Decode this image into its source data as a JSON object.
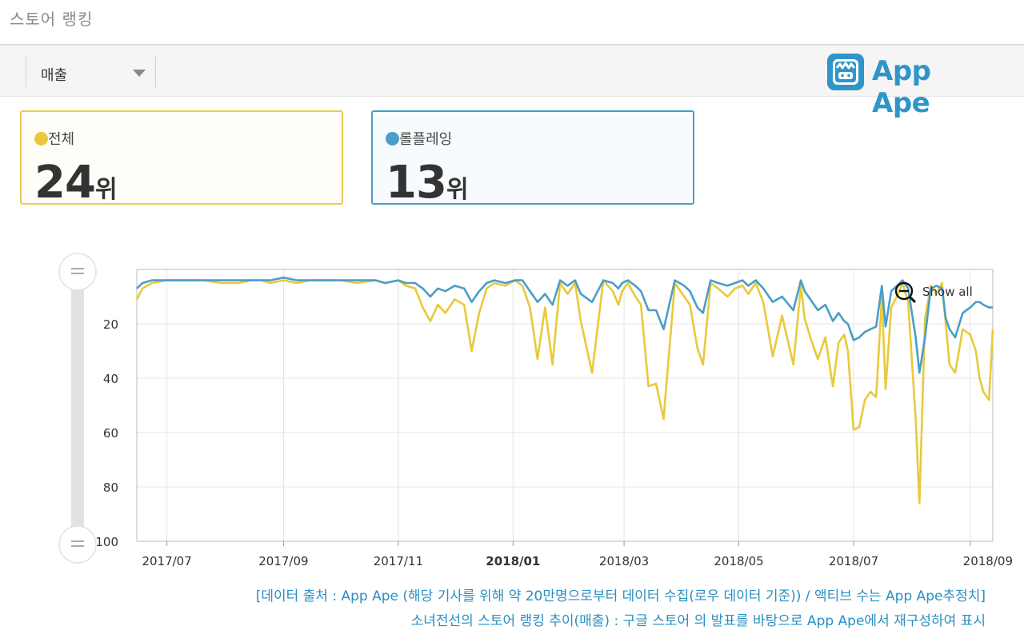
{
  "header": {
    "title": "스토어 랭킹"
  },
  "toolbar": {
    "dropdown_label": "매출"
  },
  "logo": {
    "text": "App Ape",
    "color": "#2f95c8"
  },
  "cards": [
    {
      "label": "전체",
      "rank": "24",
      "unit": "위",
      "color": "#e9c93b"
    },
    {
      "label": "롤플레잉",
      "rank": "13",
      "unit": "위",
      "color": "#4a9ec7"
    }
  ],
  "chart_controls": {
    "show_all_label": "Show all"
  },
  "captions": {
    "line1": "[데이터 출처 : App Ape (해당 기사를 위해 약 20만명으로부터 데이터 수집(로우 데이터 기준)) / 액티브 수는 App Ape추정치]",
    "line2": "소녀전선의 스토어 랭킹 추이(매출) : 구글 스토어 의 발표를 바탕으로 App Ape에서 재구성하여 표시"
  },
  "chart_data": {
    "type": "line",
    "y_inverted": true,
    "ylim": [
      0,
      100
    ],
    "y_ticks": [
      "20",
      "40",
      "60",
      "80",
      "100"
    ],
    "x_ticks": [
      "2017/07",
      "2017/09",
      "2017/11",
      "2018/01",
      "2018/03",
      "2018/05",
      "2018/07",
      "2018/09"
    ],
    "x_tick_bold": "2018/01",
    "xlim": [
      "2017-06-15",
      "2018-09-13"
    ],
    "grid": true,
    "series": [
      {
        "name": "전체",
        "color": "#e9c93b",
        "x": [
          "2017-06-15",
          "2017-06-18",
          "2017-06-23",
          "2017-07-01",
          "2017-07-10",
          "2017-07-20",
          "2017-07-30",
          "2017-08-08",
          "2017-08-15",
          "2017-08-20",
          "2017-08-25",
          "2017-09-01",
          "2017-09-08",
          "2017-09-15",
          "2017-09-22",
          "2017-10-01",
          "2017-10-10",
          "2017-10-20",
          "2017-10-25",
          "2017-11-01",
          "2017-11-05",
          "2017-11-10",
          "2017-11-14",
          "2017-11-18",
          "2017-11-22",
          "2017-11-26",
          "2017-12-01",
          "2017-12-06",
          "2017-12-10",
          "2017-12-14",
          "2017-12-18",
          "2017-12-22",
          "2017-12-28",
          "2018-01-02",
          "2018-01-06",
          "2018-01-10",
          "2018-01-14",
          "2018-01-18",
          "2018-01-22",
          "2018-01-26",
          "2018-01-30",
          "2018-02-03",
          "2018-02-06",
          "2018-02-12",
          "2018-02-18",
          "2018-02-23",
          "2018-02-26",
          "2018-02-28",
          "2018-03-03",
          "2018-03-07",
          "2018-03-10",
          "2018-03-14",
          "2018-03-18",
          "2018-03-22",
          "2018-03-28",
          "2018-04-02",
          "2018-04-05",
          "2018-04-09",
          "2018-04-12",
          "2018-04-16",
          "2018-04-20",
          "2018-04-25",
          "2018-04-29",
          "2018-05-03",
          "2018-05-06",
          "2018-05-10",
          "2018-05-14",
          "2018-05-19",
          "2018-05-24",
          "2018-05-30",
          "2018-06-03",
          "2018-06-05",
          "2018-06-08",
          "2018-06-12",
          "2018-06-16",
          "2018-06-20",
          "2018-06-23",
          "2018-06-26",
          "2018-06-28",
          "2018-07-01",
          "2018-07-04",
          "2018-07-07",
          "2018-07-10",
          "2018-07-13",
          "2018-07-16",
          "2018-07-18",
          "2018-07-21",
          "2018-07-24",
          "2018-07-27",
          "2018-07-30",
          "2018-08-03",
          "2018-08-05",
          "2018-08-08",
          "2018-08-11",
          "2018-08-14",
          "2018-08-17",
          "2018-08-19",
          "2018-08-21",
          "2018-08-24",
          "2018-08-28",
          "2018-09-01",
          "2018-09-04",
          "2018-09-06",
          "2018-09-08",
          "2018-09-11",
          "2018-09-13"
        ],
        "y": [
          11,
          7,
          5,
          4,
          4,
          4,
          5,
          5,
          4,
          4,
          5,
          4,
          5,
          4,
          4,
          4,
          5,
          4,
          5,
          4,
          6,
          7,
          14,
          19,
          13,
          16,
          11,
          13,
          30,
          16,
          7,
          5,
          6,
          4,
          6,
          14,
          33,
          14,
          35,
          5,
          9,
          5,
          19,
          38,
          4,
          8,
          13,
          8,
          5,
          10,
          13,
          43,
          42,
          55,
          5,
          10,
          13,
          29,
          35,
          5,
          7,
          10,
          7,
          6,
          9,
          5,
          12,
          32,
          17,
          35,
          6,
          18,
          25,
          33,
          25,
          43,
          27,
          24,
          30,
          59,
          58,
          48,
          45,
          47,
          10,
          44,
          14,
          10,
          5,
          12,
          55,
          86,
          18,
          6,
          9,
          5,
          20,
          35,
          38,
          22,
          24,
          30,
          40,
          45,
          48,
          22
        ]
      },
      {
        "name": "롤플레잉",
        "color": "#4a9ec7",
        "x": [
          "2017-06-15",
          "2017-06-18",
          "2017-06-23",
          "2017-07-01",
          "2017-07-10",
          "2017-07-20",
          "2017-07-30",
          "2017-08-08",
          "2017-08-15",
          "2017-08-20",
          "2017-08-25",
          "2017-09-01",
          "2017-09-08",
          "2017-09-15",
          "2017-09-22",
          "2017-10-01",
          "2017-10-10",
          "2017-10-20",
          "2017-10-25",
          "2017-11-01",
          "2017-11-05",
          "2017-11-10",
          "2017-11-14",
          "2017-11-18",
          "2017-11-22",
          "2017-11-26",
          "2017-12-01",
          "2017-12-06",
          "2017-12-10",
          "2017-12-14",
          "2017-12-18",
          "2017-12-22",
          "2017-12-28",
          "2018-01-02",
          "2018-01-06",
          "2018-01-10",
          "2018-01-14",
          "2018-01-18",
          "2018-01-22",
          "2018-01-26",
          "2018-01-30",
          "2018-02-03",
          "2018-02-06",
          "2018-02-12",
          "2018-02-18",
          "2018-02-23",
          "2018-02-26",
          "2018-02-28",
          "2018-03-03",
          "2018-03-07",
          "2018-03-10",
          "2018-03-14",
          "2018-03-18",
          "2018-03-22",
          "2018-03-28",
          "2018-04-02",
          "2018-04-05",
          "2018-04-09",
          "2018-04-12",
          "2018-04-16",
          "2018-04-20",
          "2018-04-25",
          "2018-04-29",
          "2018-05-03",
          "2018-05-06",
          "2018-05-10",
          "2018-05-14",
          "2018-05-19",
          "2018-05-24",
          "2018-05-30",
          "2018-06-03",
          "2018-06-05",
          "2018-06-08",
          "2018-06-12",
          "2018-06-16",
          "2018-06-20",
          "2018-06-23",
          "2018-06-26",
          "2018-06-28",
          "2018-07-01",
          "2018-07-04",
          "2018-07-07",
          "2018-07-10",
          "2018-07-13",
          "2018-07-16",
          "2018-07-18",
          "2018-07-21",
          "2018-07-24",
          "2018-07-27",
          "2018-07-30",
          "2018-08-03",
          "2018-08-05",
          "2018-08-08",
          "2018-08-11",
          "2018-08-14",
          "2018-08-17",
          "2018-08-19",
          "2018-08-21",
          "2018-08-24",
          "2018-08-28",
          "2018-09-01",
          "2018-09-04",
          "2018-09-06",
          "2018-09-08",
          "2018-09-11",
          "2018-09-13"
        ],
        "y": [
          7,
          5,
          4,
          4,
          4,
          4,
          4,
          4,
          4,
          4,
          4,
          3,
          4,
          4,
          4,
          4,
          4,
          4,
          5,
          4,
          5,
          5,
          7,
          10,
          7,
          8,
          6,
          7,
          12,
          8,
          5,
          4,
          5,
          4,
          4,
          8,
          12,
          9,
          13,
          4,
          6,
          4,
          9,
          12,
          4,
          5,
          7,
          5,
          4,
          6,
          8,
          15,
          15,
          22,
          4,
          6,
          8,
          14,
          16,
          4,
          5,
          6,
          5,
          4,
          6,
          4,
          7,
          12,
          10,
          15,
          4,
          8,
          11,
          15,
          13,
          19,
          16,
          19,
          20,
          26,
          25,
          23,
          22,
          21,
          6,
          21,
          8,
          6,
          4,
          7,
          25,
          38,
          25,
          7,
          6,
          7,
          18,
          22,
          25,
          16,
          14,
          12,
          12,
          13,
          14,
          14
        ]
      }
    ]
  }
}
